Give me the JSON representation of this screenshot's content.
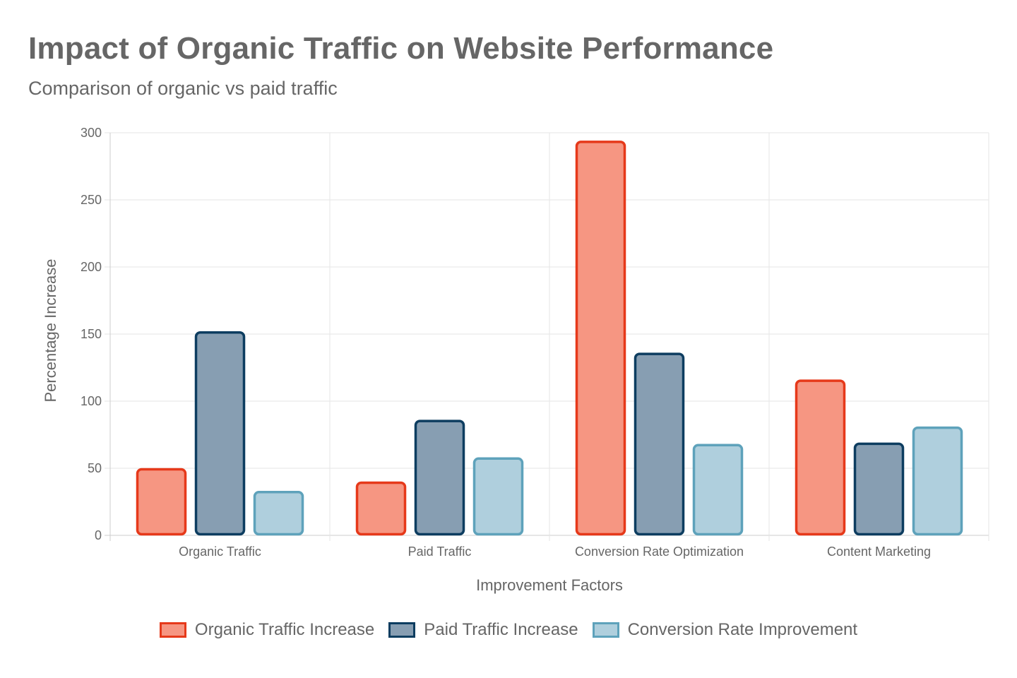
{
  "header": {
    "title": "Impact of Organic Traffic on Website Performance",
    "subtitle": "Comparison of organic vs paid traffic"
  },
  "chart_data": {
    "type": "bar",
    "title": "Impact of Organic Traffic on Website Performance",
    "subtitle": "Comparison of organic vs paid traffic",
    "xlabel": "Improvement Factors",
    "ylabel": "Percentage Increase",
    "categories": [
      "Organic Traffic",
      "Paid Traffic",
      "Conversion Rate Optimization",
      "Content Marketing"
    ],
    "ylim": [
      0,
      300
    ],
    "yticks": [
      0,
      50,
      100,
      150,
      200,
      250,
      300
    ],
    "grid": true,
    "legend_position": "bottom",
    "series": [
      {
        "name": "Organic Traffic Increase",
        "values": [
          50,
          40,
          294,
          116
        ],
        "fill": "#f69682",
        "stroke": "#e6391a"
      },
      {
        "name": "Paid Traffic Increase",
        "values": [
          152,
          86,
          136,
          69
        ],
        "fill": "#879eb2",
        "stroke": "#0d3d60"
      },
      {
        "name": "Conversion Rate Improvement",
        "values": [
          33,
          58,
          68,
          81
        ],
        "fill": "#afcfdd",
        "stroke": "#5ea2bb"
      }
    ]
  }
}
